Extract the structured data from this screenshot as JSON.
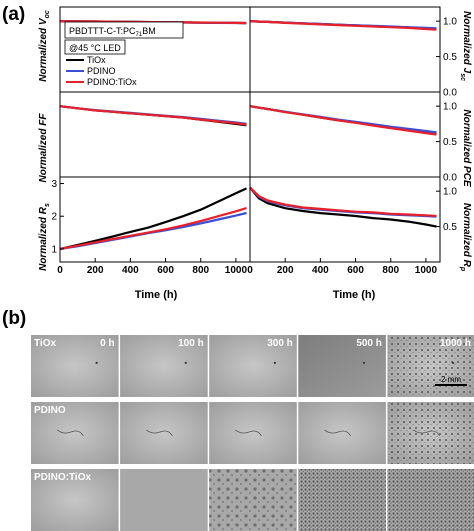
{
  "panel_a": {
    "label": "(a)",
    "device": "PBDTTT-C-T:PC",
    "device_sub": "71",
    "device_end": "BM",
    "condition": "@45 °C LED"
  },
  "panel_b": {
    "label": "(b)",
    "rows": [
      "TiOx",
      "PDINO",
      "PDINO:TiOx"
    ],
    "times": [
      "0 h",
      "100 h",
      "300 h",
      "500 h",
      "1000 h"
    ],
    "scale_bar": "2 mm"
  },
  "colors": {
    "TiOx": "#000000",
    "PDINO": "#3a4fd6",
    "PDINO:TiOx": "#e8202a"
  },
  "chart_data": [
    {
      "type": "line",
      "id": "voc",
      "ylabel": "Normalized V",
      "ylabel_sub": "oc",
      "ylabel_side": "left",
      "xlim": [
        0,
        1080
      ],
      "ylim": [
        0.0,
        1.2
      ],
      "yticks": [],
      "x": [
        0,
        100,
        200,
        300,
        400,
        500,
        600,
        700,
        800,
        900,
        1000,
        1060
      ],
      "series": [
        {
          "name": "TiOx",
          "values": [
            1.0,
            0.997,
            0.995,
            0.992,
            0.99,
            0.987,
            0.985,
            0.982,
            0.98,
            0.977,
            0.975,
            0.973
          ]
        },
        {
          "name": "PDINO",
          "values": [
            1.0,
            0.997,
            0.994,
            0.991,
            0.989,
            0.986,
            0.984,
            0.981,
            0.979,
            0.976,
            0.974,
            0.972
          ]
        },
        {
          "name": "PDINO:TiOx",
          "values": [
            1.0,
            0.998,
            0.996,
            0.993,
            0.991,
            0.988,
            0.986,
            0.983,
            0.981,
            0.978,
            0.976,
            0.974
          ]
        }
      ]
    },
    {
      "type": "line",
      "id": "jsc",
      "ylabel": "Normalized J",
      "ylabel_sub": "sc",
      "ylabel_side": "right",
      "xlim": [
        0,
        1080
      ],
      "ylim": [
        0.0,
        1.2
      ],
      "yticks": [
        0.0,
        0.5,
        1.0
      ],
      "x": [
        0,
        100,
        200,
        300,
        400,
        500,
        600,
        700,
        800,
        900,
        1000,
        1060
      ],
      "series": [
        {
          "name": "TiOx",
          "values": [
            1.0,
            0.99,
            0.98,
            0.97,
            0.96,
            0.95,
            0.94,
            0.93,
            0.92,
            0.91,
            0.9,
            0.89
          ]
        },
        {
          "name": "PDINO",
          "values": [
            1.0,
            0.99,
            0.98,
            0.97,
            0.96,
            0.95,
            0.94,
            0.935,
            0.925,
            0.915,
            0.905,
            0.9
          ]
        },
        {
          "name": "PDINO:TiOx",
          "values": [
            1.0,
            0.99,
            0.975,
            0.965,
            0.955,
            0.945,
            0.935,
            0.925,
            0.915,
            0.905,
            0.89,
            0.88
          ]
        }
      ]
    },
    {
      "type": "line",
      "id": "ff",
      "ylabel": "Normalized FF",
      "ylabel_sub": "",
      "ylabel_side": "left",
      "xlim": [
        0,
        1080
      ],
      "ylim": [
        0.0,
        1.2
      ],
      "yticks": [],
      "x": [
        0,
        100,
        200,
        300,
        400,
        500,
        600,
        700,
        800,
        900,
        1000,
        1060
      ],
      "series": [
        {
          "name": "TiOx",
          "values": [
            1.0,
            0.97,
            0.94,
            0.92,
            0.9,
            0.88,
            0.86,
            0.84,
            0.81,
            0.78,
            0.75,
            0.73
          ]
        },
        {
          "name": "PDINO",
          "values": [
            1.0,
            0.97,
            0.945,
            0.925,
            0.905,
            0.885,
            0.865,
            0.845,
            0.82,
            0.795,
            0.77,
            0.75
          ]
        },
        {
          "name": "PDINO:TiOx",
          "values": [
            1.0,
            0.97,
            0.94,
            0.92,
            0.9,
            0.88,
            0.86,
            0.84,
            0.81,
            0.785,
            0.76,
            0.74
          ]
        }
      ]
    },
    {
      "type": "line",
      "id": "pce",
      "ylabel": "Normalized PCE",
      "ylabel_sub": "",
      "ylabel_side": "right",
      "xlim": [
        0,
        1080
      ],
      "ylim": [
        0.0,
        1.2
      ],
      "yticks": [
        0.0,
        0.5,
        1.0
      ],
      "x": [
        0,
        100,
        200,
        300,
        400,
        500,
        600,
        700,
        800,
        900,
        1000,
        1060
      ],
      "series": [
        {
          "name": "TiOx",
          "values": [
            1.0,
            0.96,
            0.92,
            0.88,
            0.84,
            0.8,
            0.77,
            0.73,
            0.7,
            0.66,
            0.63,
            0.61
          ]
        },
        {
          "name": "PDINO",
          "values": [
            1.0,
            0.96,
            0.92,
            0.885,
            0.85,
            0.81,
            0.78,
            0.745,
            0.71,
            0.68,
            0.65,
            0.63
          ]
        },
        {
          "name": "PDINO:TiOx",
          "values": [
            1.0,
            0.96,
            0.915,
            0.88,
            0.84,
            0.8,
            0.765,
            0.725,
            0.69,
            0.655,
            0.62,
            0.6
          ]
        }
      ]
    },
    {
      "type": "line",
      "id": "rs",
      "ylabel": "Normalized R",
      "ylabel_sub": "s",
      "ylabel_side": "left",
      "xlim": [
        0,
        1080
      ],
      "ylim": [
        0.6,
        3.2
      ],
      "yticks": [
        1,
        2,
        3
      ],
      "xlabel": "Time (h)",
      "xticks": [
        0,
        200,
        400,
        600,
        800,
        1000
      ],
      "x": [
        0,
        100,
        200,
        300,
        400,
        500,
        600,
        700,
        800,
        900,
        1000,
        1060
      ],
      "series": [
        {
          "name": "TiOx",
          "values": [
            1.0,
            1.12,
            1.25,
            1.38,
            1.52,
            1.65,
            1.82,
            2.0,
            2.2,
            2.45,
            2.7,
            2.85
          ]
        },
        {
          "name": "PDINO",
          "values": [
            1.0,
            1.08,
            1.18,
            1.28,
            1.38,
            1.48,
            1.57,
            1.67,
            1.78,
            1.9,
            2.02,
            2.1
          ]
        },
        {
          "name": "PDINO:TiOx",
          "values": [
            1.0,
            1.1,
            1.2,
            1.3,
            1.4,
            1.5,
            1.6,
            1.72,
            1.85,
            2.0,
            2.15,
            2.25
          ]
        }
      ]
    },
    {
      "type": "line",
      "id": "rp",
      "ylabel": "Normalized R",
      "ylabel_sub": "p",
      "ylabel_side": "right",
      "xlim": [
        0,
        1080
      ],
      "ylim": [
        0.0,
        1.2
      ],
      "yticks": [
        0.5,
        1.0
      ],
      "xlabel": "Time (h)",
      "xticks": [
        0,
        200,
        400,
        600,
        800,
        1000
      ],
      "x": [
        0,
        50,
        100,
        200,
        300,
        400,
        500,
        600,
        700,
        800,
        900,
        1000,
        1060
      ],
      "series": [
        {
          "name": "TiOx",
          "values": [
            1.05,
            0.9,
            0.83,
            0.76,
            0.72,
            0.69,
            0.67,
            0.65,
            0.62,
            0.6,
            0.57,
            0.53,
            0.5
          ]
        },
        {
          "name": "PDINO",
          "values": [
            1.05,
            0.92,
            0.86,
            0.8,
            0.76,
            0.74,
            0.72,
            0.7,
            0.69,
            0.67,
            0.66,
            0.65,
            0.64
          ]
        },
        {
          "name": "PDINO:TiOx",
          "values": [
            1.05,
            0.93,
            0.87,
            0.81,
            0.77,
            0.75,
            0.73,
            0.71,
            0.7,
            0.68,
            0.67,
            0.66,
            0.65
          ]
        }
      ]
    }
  ]
}
